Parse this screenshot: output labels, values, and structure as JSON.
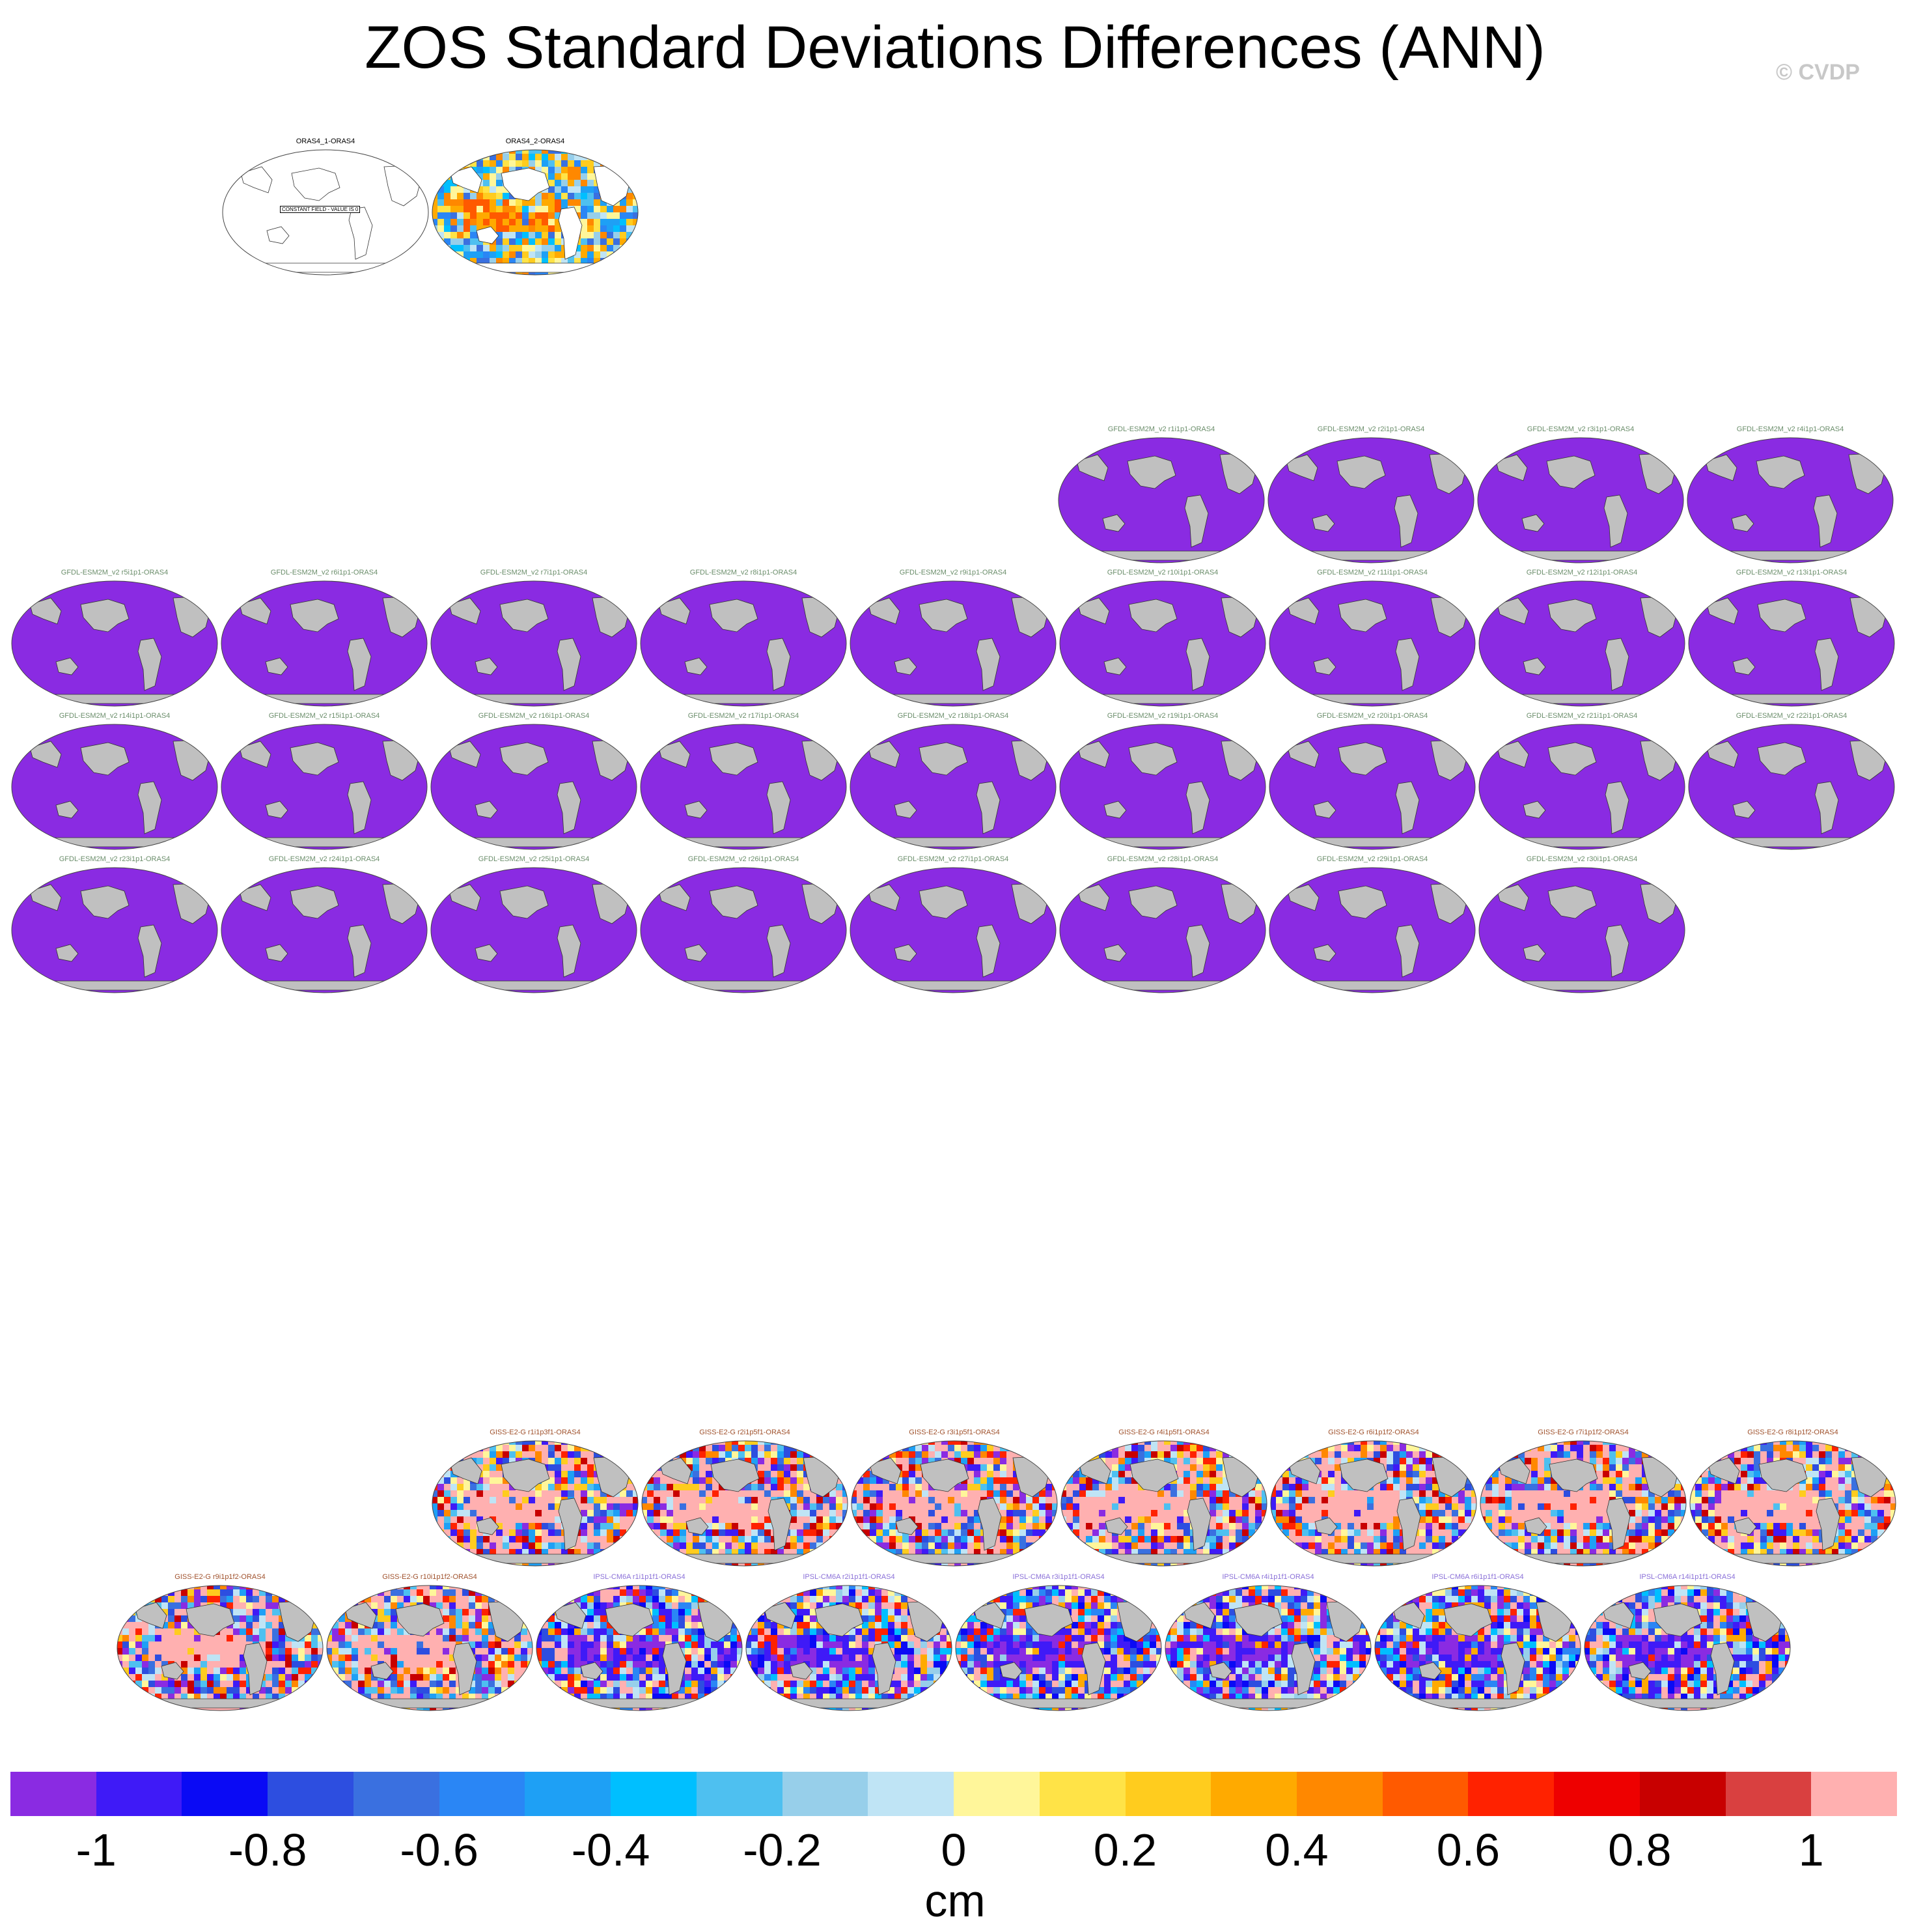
{
  "title": "ZOS Standard Deviations Differences (ANN)",
  "credit": "© CVDP",
  "constant_field_note": "CONSTANT FIELD - VALUE IS 0",
  "colors": {
    "gfdl_label": "#6b8e6b",
    "giss_label": "#a0522d",
    "ipsl_label": "#8a70d8",
    "obs_label": "#000000",
    "land": "#c0c0c0",
    "purple_fill": "#8a2be2"
  },
  "colorbar": {
    "colors": [
      "#8a2be2",
      "#3f1af7",
      "#0a0af5",
      "#2d4ee0",
      "#3a70e0",
      "#2a86f5",
      "#1ea0f5",
      "#00bfff",
      "#4ec0f0",
      "#97cfea",
      "#bfe4f5",
      "#fff69a",
      "#ffe347",
      "#ffcc1e",
      "#ffaa00",
      "#ff8800",
      "#ff5a00",
      "#ff2200",
      "#ee0000",
      "#c80000",
      "#d94040",
      "#ffb0b0"
    ],
    "tick_labels": [
      "-1",
      "-0.8",
      "-0.6",
      "-0.4",
      "-0.2",
      "0",
      "0.2",
      "0.4",
      "0.6",
      "0.8",
      "1"
    ],
    "units": "cm"
  },
  "panels": [
    {
      "label": "ORAS4_1-ORAS4",
      "style": "blank",
      "group": "obs"
    },
    {
      "label": "ORAS4_2-ORAS4",
      "style": "obs",
      "group": "obs"
    },
    {
      "label": "GFDL-ESM2M_v2 r1i1p1-ORAS4",
      "style": "purple",
      "group": "gfdl"
    },
    {
      "label": "GFDL-ESM2M_v2 r2i1p1-ORAS4",
      "style": "purple",
      "group": "gfdl"
    },
    {
      "label": "GFDL-ESM2M_v2 r3i1p1-ORAS4",
      "style": "purple",
      "group": "gfdl"
    },
    {
      "label": "GFDL-ESM2M_v2 r4i1p1-ORAS4",
      "style": "purple",
      "group": "gfdl"
    },
    {
      "label": "GFDL-ESM2M_v2 r5i1p1-ORAS4",
      "style": "purple",
      "group": "gfdl"
    },
    {
      "label": "GFDL-ESM2M_v2 r6i1p1-ORAS4",
      "style": "purple",
      "group": "gfdl"
    },
    {
      "label": "GFDL-ESM2M_v2 r7i1p1-ORAS4",
      "style": "purple",
      "group": "gfdl"
    },
    {
      "label": "GFDL-ESM2M_v2 r8i1p1-ORAS4",
      "style": "purple",
      "group": "gfdl"
    },
    {
      "label": "GFDL-ESM2M_v2 r9i1p1-ORAS4",
      "style": "purple",
      "group": "gfdl"
    },
    {
      "label": "GFDL-ESM2M_v2 r10i1p1-ORAS4",
      "style": "purple",
      "group": "gfdl"
    },
    {
      "label": "GFDL-ESM2M_v2 r11i1p1-ORAS4",
      "style": "purple",
      "group": "gfdl"
    },
    {
      "label": "GFDL-ESM2M_v2 r12i1p1-ORAS4",
      "style": "purple",
      "group": "gfdl"
    },
    {
      "label": "GFDL-ESM2M_v2 r13i1p1-ORAS4",
      "style": "purple",
      "group": "gfdl"
    },
    {
      "label": "GFDL-ESM2M_v2 r14i1p1-ORAS4",
      "style": "purple",
      "group": "gfdl"
    },
    {
      "label": "GFDL-ESM2M_v2 r15i1p1-ORAS4",
      "style": "purple",
      "group": "gfdl"
    },
    {
      "label": "GFDL-ESM2M_v2 r16i1p1-ORAS4",
      "style": "purple",
      "group": "gfdl"
    },
    {
      "label": "GFDL-ESM2M_v2 r17i1p1-ORAS4",
      "style": "purple",
      "group": "gfdl"
    },
    {
      "label": "GFDL-ESM2M_v2 r18i1p1-ORAS4",
      "style": "purple",
      "group": "gfdl"
    },
    {
      "label": "GFDL-ESM2M_v2 r19i1p1-ORAS4",
      "style": "purple",
      "group": "gfdl"
    },
    {
      "label": "GFDL-ESM2M_v2 r20i1p1-ORAS4",
      "style": "purple",
      "group": "gfdl"
    },
    {
      "label": "GFDL-ESM2M_v2 r21i1p1-ORAS4",
      "style": "purple",
      "group": "gfdl"
    },
    {
      "label": "GFDL-ESM2M_v2 r22i1p1-ORAS4",
      "style": "purple",
      "group": "gfdl"
    },
    {
      "label": "GFDL-ESM2M_v2 r23i1p1-ORAS4",
      "style": "purple",
      "group": "gfdl"
    },
    {
      "label": "GFDL-ESM2M_v2 r24i1p1-ORAS4",
      "style": "purple",
      "group": "gfdl"
    },
    {
      "label": "GFDL-ESM2M_v2 r25i1p1-ORAS4",
      "style": "purple",
      "group": "gfdl"
    },
    {
      "label": "GFDL-ESM2M_v2 r26i1p1-ORAS4",
      "style": "purple",
      "group": "gfdl"
    },
    {
      "label": "GFDL-ESM2M_v2 r27i1p1-ORAS4",
      "style": "purple",
      "group": "gfdl"
    },
    {
      "label": "GFDL-ESM2M_v2 r28i1p1-ORAS4",
      "style": "purple",
      "group": "gfdl"
    },
    {
      "label": "GFDL-ESM2M_v2 r29i1p1-ORAS4",
      "style": "purple",
      "group": "gfdl"
    },
    {
      "label": "GFDL-ESM2M_v2 r30i1p1-ORAS4",
      "style": "purple",
      "group": "gfdl"
    },
    {
      "label": "GISS-E2-G r1i1p3f1-ORAS4",
      "style": "giss",
      "group": "giss"
    },
    {
      "label": "GISS-E2-G r2i1p5f1-ORAS4",
      "style": "giss",
      "group": "giss"
    },
    {
      "label": "GISS-E2-G r3i1p5f1-ORAS4",
      "style": "giss",
      "group": "giss"
    },
    {
      "label": "GISS-E2-G r4i1p5f1-ORAS4",
      "style": "giss",
      "group": "giss"
    },
    {
      "label": "GISS-E2-G r6i1p1f2-ORAS4",
      "style": "giss",
      "group": "giss"
    },
    {
      "label": "GISS-E2-G r7i1p1f2-ORAS4",
      "style": "giss",
      "group": "giss"
    },
    {
      "label": "GISS-E2-G r8i1p1f2-ORAS4",
      "style": "giss",
      "group": "giss"
    },
    {
      "label": "GISS-E2-G r9i1p1f2-ORAS4",
      "style": "giss",
      "group": "giss"
    },
    {
      "label": "GISS-E2-G r10i1p1f2-ORAS4",
      "style": "giss",
      "group": "giss"
    },
    {
      "label": "IPSL-CM6A r1i1p1f1-ORAS4",
      "style": "ipsl",
      "group": "ipsl"
    },
    {
      "label": "IPSL-CM6A r2i1p1f1-ORAS4",
      "style": "ipsl",
      "group": "ipsl"
    },
    {
      "label": "IPSL-CM6A r3i1p1f1-ORAS4",
      "style": "ipsl",
      "group": "ipsl"
    },
    {
      "label": "IPSL-CM6A r4i1p1f1-ORAS4",
      "style": "ipsl",
      "group": "ipsl"
    },
    {
      "label": "IPSL-CM6A r6i1p1f1-ORAS4",
      "style": "ipsl",
      "group": "ipsl"
    },
    {
      "label": "IPSL-CM6A r14i1p1f1-ORAS4",
      "style": "ipsl",
      "group": "ipsl"
    }
  ]
}
